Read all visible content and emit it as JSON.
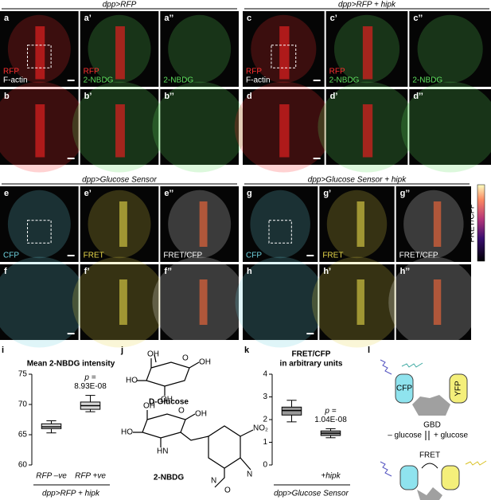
{
  "groups": [
    {
      "title": "dpp>RFP",
      "panels": [
        {
          "label": "a",
          "channels": [
            {
              "text": "RFP",
              "color": "#ff3030"
            },
            {
              "text": "F-actin",
              "color": "#ffffff"
            }
          ]
        },
        {
          "label": "a’",
          "channels": [
            {
              "text": "RFP",
              "color": "#ff3030"
            },
            {
              "text": "2-NBDG",
              "color": "#5ee05e"
            }
          ]
        },
        {
          "label": "a’’",
          "channels": [
            {
              "text": "2-NBDG",
              "color": "#5ee05e"
            }
          ]
        },
        {
          "label": "b",
          "channels": []
        },
        {
          "label": "b’",
          "channels": []
        },
        {
          "label": "b’’",
          "channels": []
        }
      ]
    },
    {
      "title": "dpp>RFP + hipk",
      "panels": [
        {
          "label": "c",
          "channels": [
            {
              "text": "RFP",
              "color": "#ff3030"
            },
            {
              "text": "F-actin",
              "color": "#ffffff"
            }
          ]
        },
        {
          "label": "c’",
          "channels": [
            {
              "text": "RFP",
              "color": "#ff3030"
            },
            {
              "text": "2-NBDG",
              "color": "#5ee05e"
            }
          ]
        },
        {
          "label": "c’’",
          "channels": [
            {
              "text": "2-NBDG",
              "color": "#5ee05e"
            }
          ]
        },
        {
          "label": "d",
          "channels": []
        },
        {
          "label": "d’",
          "channels": []
        },
        {
          "label": "d’’",
          "channels": []
        }
      ]
    },
    {
      "title": "dpp>Glucose Sensor",
      "panels": [
        {
          "label": "e",
          "channels": [
            {
              "text": "CFP",
              "color": "#6fd3e0"
            }
          ]
        },
        {
          "label": "e’",
          "channels": [
            {
              "text": "FRET",
              "color": "#e8d84a"
            }
          ]
        },
        {
          "label": "e’’",
          "channels": [
            {
              "text": "FRET/CFP",
              "color": "#ffffff"
            }
          ]
        },
        {
          "label": "f",
          "channels": []
        },
        {
          "label": "f’",
          "channels": []
        },
        {
          "label": "f’’",
          "channels": []
        }
      ]
    },
    {
      "title": "dpp>Glucose Sensor + hipk",
      "panels": [
        {
          "label": "g",
          "channels": [
            {
              "text": "CFP",
              "color": "#6fd3e0"
            }
          ]
        },
        {
          "label": "g’",
          "channels": [
            {
              "text": "FRET",
              "color": "#e8d84a"
            }
          ]
        },
        {
          "label": "g’’",
          "channels": [
            {
              "text": "FRET/CFP",
              "color": "#ffffff"
            }
          ]
        },
        {
          "label": "h",
          "channels": []
        },
        {
          "label": "h’",
          "channels": []
        },
        {
          "label": "h’’",
          "channels": []
        }
      ]
    }
  ],
  "colorbar": {
    "label": "FRET/CFP"
  },
  "chart_data": [
    {
      "type": "box",
      "panel": "i",
      "title": "Mean 2-NBDG intensity",
      "categories": [
        "RFP –ve",
        "RFP +ve"
      ],
      "boxes": [
        {
          "whisker_low": 65.3,
          "q1": 66,
          "median": 66.3,
          "q3": 66.8,
          "whisker_high": 67.3
        },
        {
          "whisker_low": 68.8,
          "q1": 69.2,
          "median": 69.8,
          "q3": 70.4,
          "whisker_high": 71.5
        }
      ],
      "color": "#d9d9d9",
      "point_color": "#6cc26c",
      "ylim": [
        60,
        75
      ],
      "yticks": [
        60,
        65,
        70,
        75
      ],
      "annotation": [
        "p =",
        "8.93E-08"
      ],
      "xlabel": "dpp>RFP + hipk"
    },
    {
      "type": "box",
      "panel": "k",
      "title": "FRET/CFP",
      "subtitle": "in arbitrary units",
      "categories": [
        null,
        "+hipk"
      ],
      "boxes": [
        {
          "whisker_low": 1.9,
          "q1": 2.2,
          "median": 2.4,
          "q3": 2.55,
          "whisker_high": 2.85
        },
        {
          "whisker_low": 1.2,
          "q1": 1.3,
          "median": 1.4,
          "q3": 1.5,
          "whisker_high": 1.6
        }
      ],
      "color": "#9a9a9a",
      "point_color": "#c86fc8",
      "ylim": [
        0,
        4
      ],
      "yticks": [
        0,
        1,
        2,
        3,
        4
      ],
      "annotation": [
        "p =",
        "1.04E-08"
      ],
      "xlabel": "dpp>Glucose Sensor"
    }
  ],
  "structures": {
    "panel": "j",
    "names": [
      "D-Glucose",
      "2-NBDG"
    ],
    "atoms": [
      "OH",
      "O",
      "HO",
      "OH",
      "OH",
      "OH",
      "O",
      "HO",
      "OH",
      "HN",
      "NO₂",
      "N",
      "O",
      "N"
    ]
  },
  "scheme": {
    "panel": "l",
    "labels": [
      "CFP",
      "YFP",
      "GBD",
      "– glucose",
      "+ glucose",
      "FRET"
    ]
  }
}
